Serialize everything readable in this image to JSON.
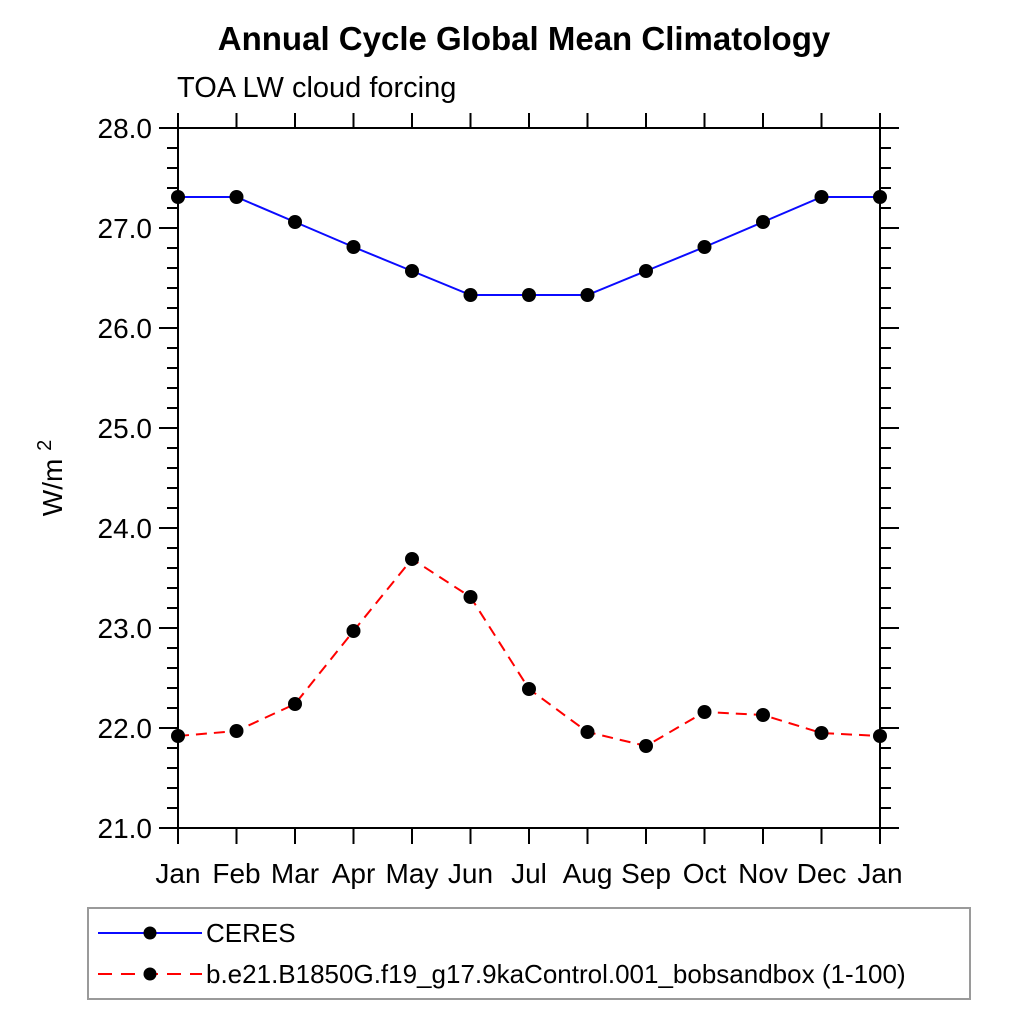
{
  "title": "Annual Cycle Global Mean Climatology",
  "subtitle": "TOA LW cloud forcing",
  "chart_data": {
    "type": "line",
    "categories": [
      "Jan",
      "Feb",
      "Mar",
      "Apr",
      "May",
      "Jun",
      "Jul",
      "Aug",
      "Sep",
      "Oct",
      "Nov",
      "Dec",
      "Jan"
    ],
    "ylabel": "W/m²",
    "ylabel_base": "W/m",
    "ylabel_sup": "2",
    "ylim": [
      21.0,
      28.0
    ],
    "ytick_major": 1.0,
    "ytick_minor": 0.2,
    "ytick_labels": [
      "21.0",
      "22.0",
      "23.0",
      "24.0",
      "25.0",
      "26.0",
      "27.0",
      "28.0"
    ],
    "grid": false,
    "legend_position": "bottom",
    "frame_color": "#000000",
    "series": [
      {
        "name": "CERES",
        "color": "#0b0bff",
        "style": "solid",
        "marker": "circle",
        "marker_color": "#000000",
        "values": [
          27.31,
          27.31,
          27.06,
          26.81,
          26.57,
          26.33,
          26.33,
          26.33,
          26.57,
          26.81,
          27.06,
          27.31,
          27.31
        ]
      },
      {
        "name": "b.e21.B1850G.f19_g17.9kaControl.001_bobsandbox (1-100)",
        "color": "#ff0000",
        "style": "dashed",
        "marker": "circle",
        "marker_color": "#000000",
        "values": [
          21.92,
          21.97,
          22.24,
          22.97,
          23.69,
          23.31,
          22.39,
          21.96,
          21.82,
          22.16,
          22.13,
          21.95,
          21.92
        ]
      }
    ]
  }
}
